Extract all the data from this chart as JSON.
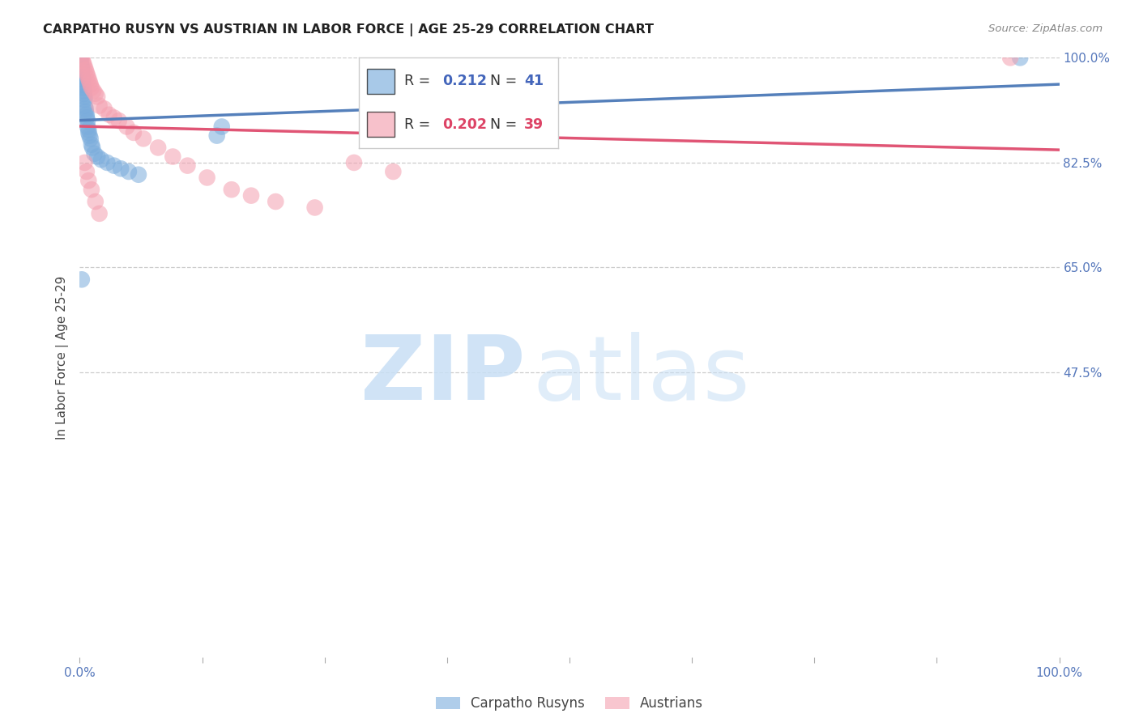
{
  "title": "CARPATHO RUSYN VS AUSTRIAN IN LABOR FORCE | AGE 25-29 CORRELATION CHART",
  "source": "Source: ZipAtlas.com",
  "ylabel": "In Labor Force | Age 25-29",
  "xlim": [
    0.0,
    1.0
  ],
  "ylim": [
    0.0,
    1.0
  ],
  "x_tick_positions": [
    0.0,
    0.125,
    0.25,
    0.375,
    0.5,
    0.625,
    0.75,
    0.875,
    1.0
  ],
  "x_tick_labels": [
    "0.0%",
    "",
    "",
    "",
    "",
    "",
    "",
    "",
    "100.0%"
  ],
  "y_tick_labels_right": [
    "100.0%",
    "82.5%",
    "65.0%",
    "47.5%"
  ],
  "y_tick_positions_right": [
    1.0,
    0.825,
    0.65,
    0.475
  ],
  "grid_color": "#cccccc",
  "background_color": "#ffffff",
  "blue_color": "#7aacdc",
  "pink_color": "#f4a0b0",
  "blue_line_color": "#5580bb",
  "pink_line_color": "#e05575",
  "legend_r_blue": "0.212",
  "legend_n_blue": "41",
  "legend_r_pink": "0.202",
  "legend_n_pink": "39",
  "tick_color": "#5577bb",
  "carpatho_x": [
    0.001,
    0.001,
    0.001,
    0.002,
    0.002,
    0.002,
    0.002,
    0.003,
    0.003,
    0.003,
    0.004,
    0.004,
    0.004,
    0.005,
    0.005,
    0.005,
    0.006,
    0.006,
    0.007,
    0.007,
    0.008,
    0.008,
    0.009,
    0.009,
    0.01,
    0.011,
    0.012,
    0.013,
    0.015,
    0.018,
    0.022,
    0.028,
    0.035,
    0.042,
    0.05,
    0.06,
    0.002,
    0.14,
    0.145,
    0.385,
    0.96
  ],
  "carpatho_y": [
    1.0,
    0.995,
    0.99,
    0.985,
    0.98,
    0.975,
    0.97,
    0.965,
    0.96,
    0.955,
    0.95,
    0.945,
    0.94,
    0.935,
    0.93,
    0.92,
    0.915,
    0.91,
    0.905,
    0.9,
    0.895,
    0.885,
    0.88,
    0.875,
    0.87,
    0.865,
    0.855,
    0.85,
    0.84,
    0.835,
    0.83,
    0.825,
    0.82,
    0.815,
    0.81,
    0.805,
    0.63,
    0.87,
    0.885,
    0.878,
    1.0
  ],
  "austrian_x": [
    0.002,
    0.003,
    0.004,
    0.005,
    0.006,
    0.007,
    0.008,
    0.009,
    0.01,
    0.011,
    0.012,
    0.014,
    0.016,
    0.018,
    0.02,
    0.025,
    0.03,
    0.035,
    0.04,
    0.048,
    0.055,
    0.065,
    0.08,
    0.095,
    0.11,
    0.13,
    0.155,
    0.175,
    0.2,
    0.24,
    0.005,
    0.007,
    0.009,
    0.012,
    0.016,
    0.02,
    0.28,
    0.32,
    0.95
  ],
  "austrian_y": [
    1.0,
    0.995,
    0.99,
    0.985,
    0.98,
    0.975,
    0.97,
    0.965,
    0.96,
    0.955,
    0.95,
    0.945,
    0.94,
    0.935,
    0.92,
    0.915,
    0.905,
    0.9,
    0.895,
    0.885,
    0.875,
    0.865,
    0.85,
    0.835,
    0.82,
    0.8,
    0.78,
    0.77,
    0.76,
    0.75,
    0.825,
    0.81,
    0.795,
    0.78,
    0.76,
    0.74,
    0.825,
    0.81,
    1.0
  ]
}
